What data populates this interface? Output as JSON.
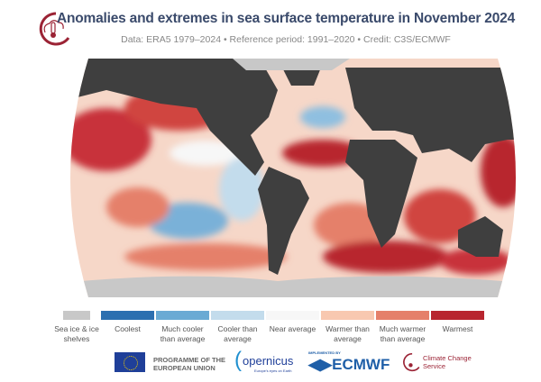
{
  "header": {
    "title": "Anomalies and extremes in sea surface temperature in November 2024",
    "subtitle": "Data: ERA5 1979–2024 • Reference period: 1991–2020 • Credit: C3S/ECMWF"
  },
  "legend": [
    {
      "label": "Sea ice & ice shelves",
      "color": "#c8c8c8"
    },
    {
      "label": "Coolest",
      "color": "#2c6fb0"
    },
    {
      "label": "Much cooler than average",
      "color": "#6aaad4"
    },
    {
      "label": "Cooler than average",
      "color": "#c3dcec"
    },
    {
      "label": "Near average",
      "color": "#f7f7f7"
    },
    {
      "label": "Warmer than average",
      "color": "#f8c8b0"
    },
    {
      "label": "Much warmer than average",
      "color": "#e5806a"
    },
    {
      "label": "Warmest",
      "color": "#b8252f"
    }
  ],
  "footer": {
    "eu": "PROGRAMME OF THE EUROPEAN UNION",
    "copernicus": "opernicus",
    "copernicus_tag": "Europe's eyes on Earth",
    "ecmwf_tag": "IMPLEMENTED BY",
    "ecmwf": "ECMWF",
    "c3s": "Climate Change Service"
  },
  "colors": {
    "land": "#3f3f3f",
    "title": "#3a4a6b",
    "brand": "#9b2335"
  }
}
